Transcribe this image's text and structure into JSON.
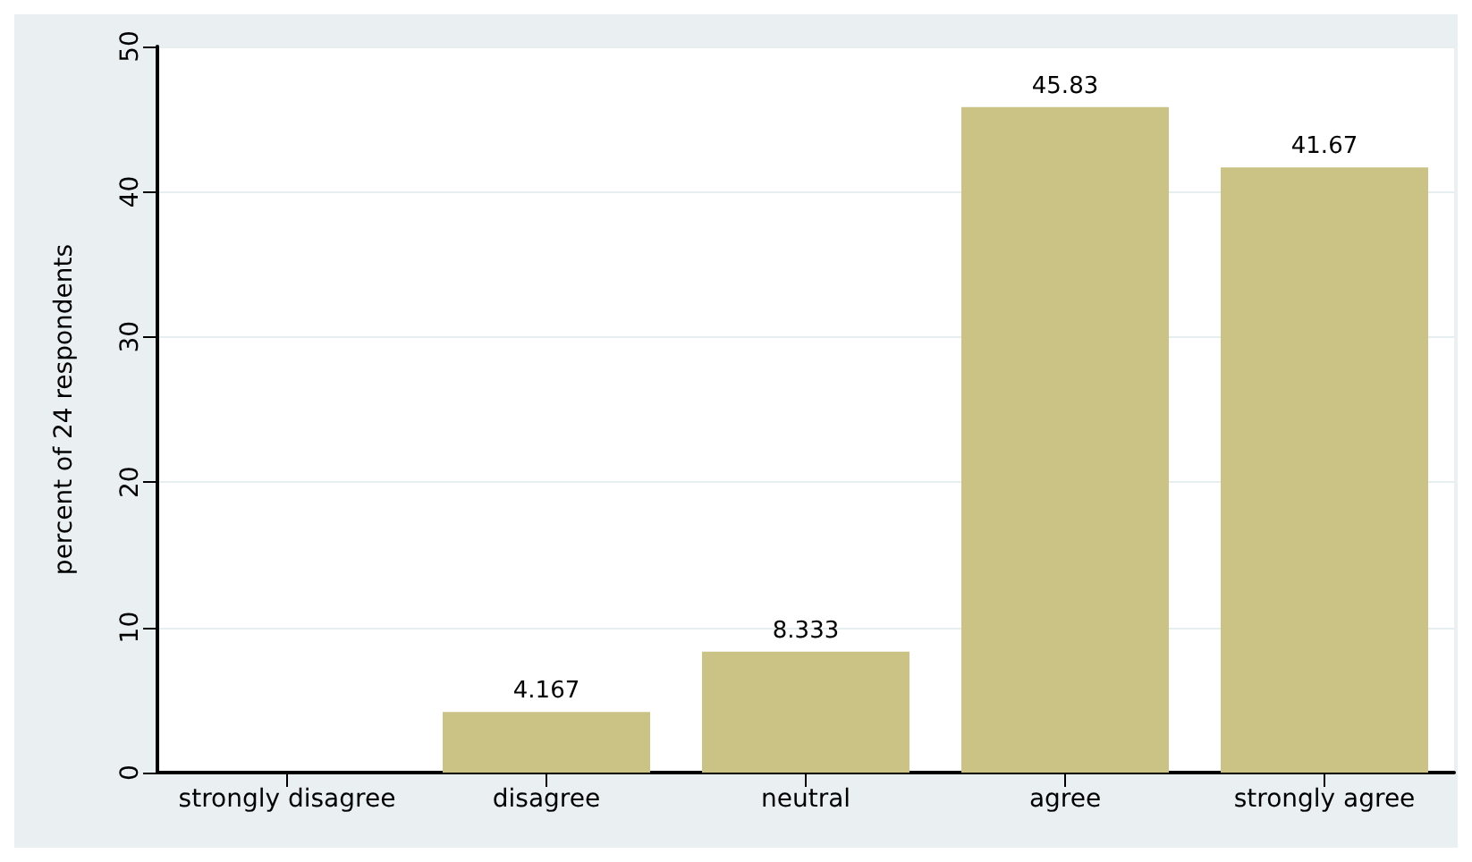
{
  "chart_data": {
    "type": "bar",
    "ylabel": "percent of 24 respondents",
    "categories": [
      "strongly disagree",
      "disagree",
      "neutral",
      "agree",
      "strongly agree"
    ],
    "values": [
      0,
      4.167,
      8.333,
      45.83,
      41.67
    ],
    "value_labels": [
      null,
      "4.167",
      "8.333",
      "45.83",
      "41.67"
    ],
    "color": "#cbc385",
    "ylim": [
      0,
      50
    ],
    "yticks": [
      0,
      10,
      20,
      30,
      40,
      50
    ],
    "grid": "y"
  }
}
